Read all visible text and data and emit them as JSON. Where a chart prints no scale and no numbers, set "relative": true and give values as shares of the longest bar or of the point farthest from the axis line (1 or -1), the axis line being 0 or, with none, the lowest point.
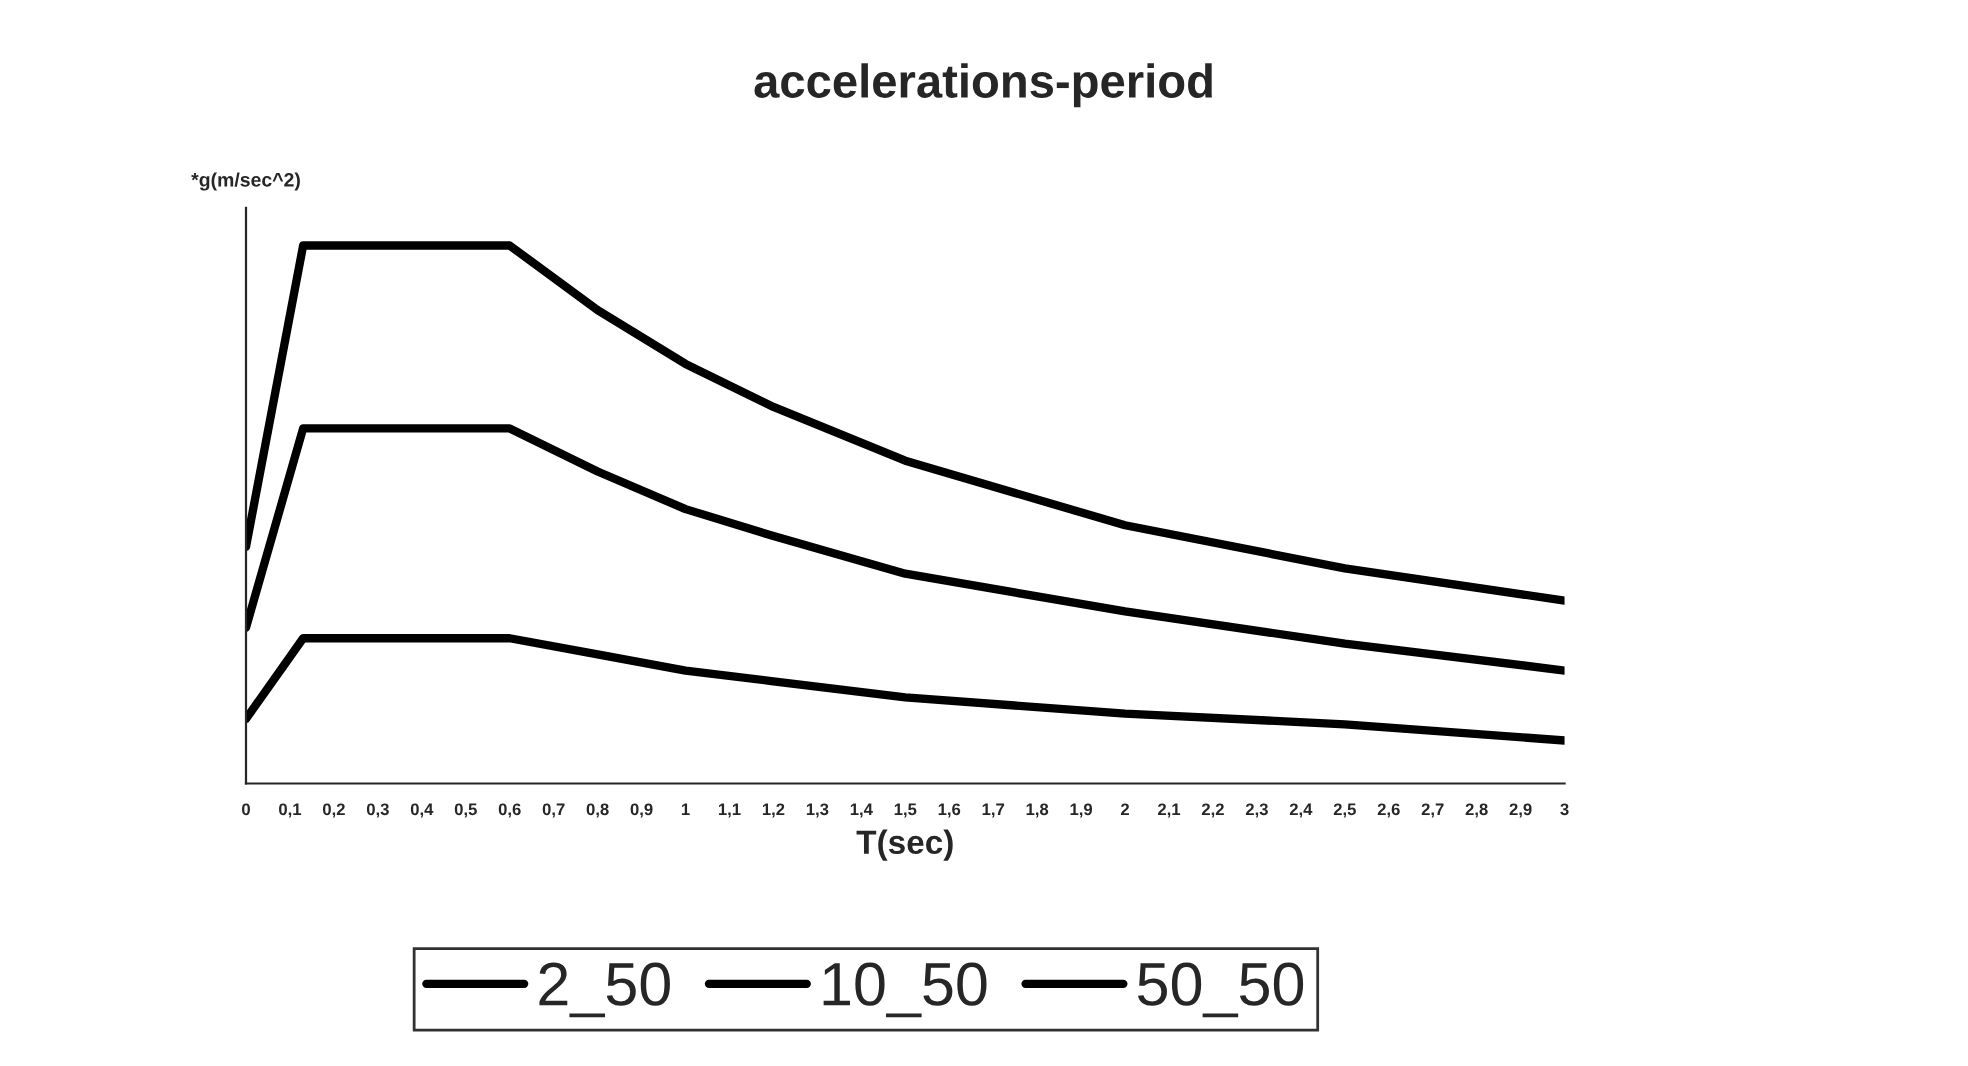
{
  "chart_data": {
    "type": "line",
    "title": "accelerations-period",
    "xlabel": "T(sec)",
    "ylabel": "*g(m/sec^2)",
    "relative": true,
    "x": [
      0,
      0.13,
      0.6,
      0.8,
      1,
      1.2,
      1.5,
      2,
      2.5,
      3
    ],
    "xlim": [
      0,
      3
    ],
    "xticks": [
      0,
      {
        "value": 0.1,
        "label": "0,1"
      },
      {
        "value": 0.2,
        "label": "0,2"
      },
      {
        "value": 0.3,
        "label": "0,3"
      },
      {
        "value": 0.4,
        "label": "0,4"
      },
      {
        "value": 0.5,
        "label": "0,5"
      },
      {
        "value": 0.6,
        "label": "0,6"
      },
      {
        "value": 0.7,
        "label": "0,7"
      },
      {
        "value": 0.8,
        "label": "0,8"
      },
      {
        "value": 0.9,
        "label": "0,9"
      },
      1,
      {
        "value": 1.1,
        "label": "1,1"
      },
      {
        "value": 1.2,
        "label": "1,2"
      },
      {
        "value": 1.3,
        "label": "1,3"
      },
      {
        "value": 1.4,
        "label": "1,4"
      },
      {
        "value": 1.5,
        "label": "1,5"
      },
      {
        "value": 1.6,
        "label": "1,6"
      },
      {
        "value": 1.7,
        "label": "1,7"
      },
      {
        "value": 1.8,
        "label": "1,8"
      },
      {
        "value": 1.9,
        "label": "1,9"
      },
      2,
      {
        "value": 2.1,
        "label": "2,1"
      },
      {
        "value": 2.2,
        "label": "2,2"
      },
      {
        "value": 2.3,
        "label": "2,3"
      },
      {
        "value": 2.4,
        "label": "2,4"
      },
      {
        "value": 2.5,
        "label": "2,5"
      },
      {
        "value": 2.6,
        "label": "2,6"
      },
      {
        "value": 2.7,
        "label": "2,7"
      },
      {
        "value": 2.8,
        "label": "2,8"
      },
      {
        "value": 2.9,
        "label": "2,9"
      },
      3
    ],
    "series": [
      {
        "name": "2_50",
        "color": "#000000",
        "values": [
          0.44,
          1,
          1,
          0.88,
          0.78,
          0.7,
          0.6,
          0.48,
          0.4,
          0.34
        ]
      },
      {
        "name": "10_50",
        "color": "#000000",
        "values": [
          0.29,
          0.66,
          0.66,
          0.58,
          0.51,
          0.46,
          0.39,
          0.32,
          0.26,
          0.21
        ]
      },
      {
        "name": "50_50",
        "color": "#000000",
        "values": [
          0.12,
          0.27,
          0.27,
          0.24,
          0.21,
          0.19,
          0.16,
          0.13,
          0.11,
          0.08
        ]
      }
    ],
    "legend": "bottom",
    "grid": false,
    "marker": "none",
    "line_style": "solid"
  }
}
